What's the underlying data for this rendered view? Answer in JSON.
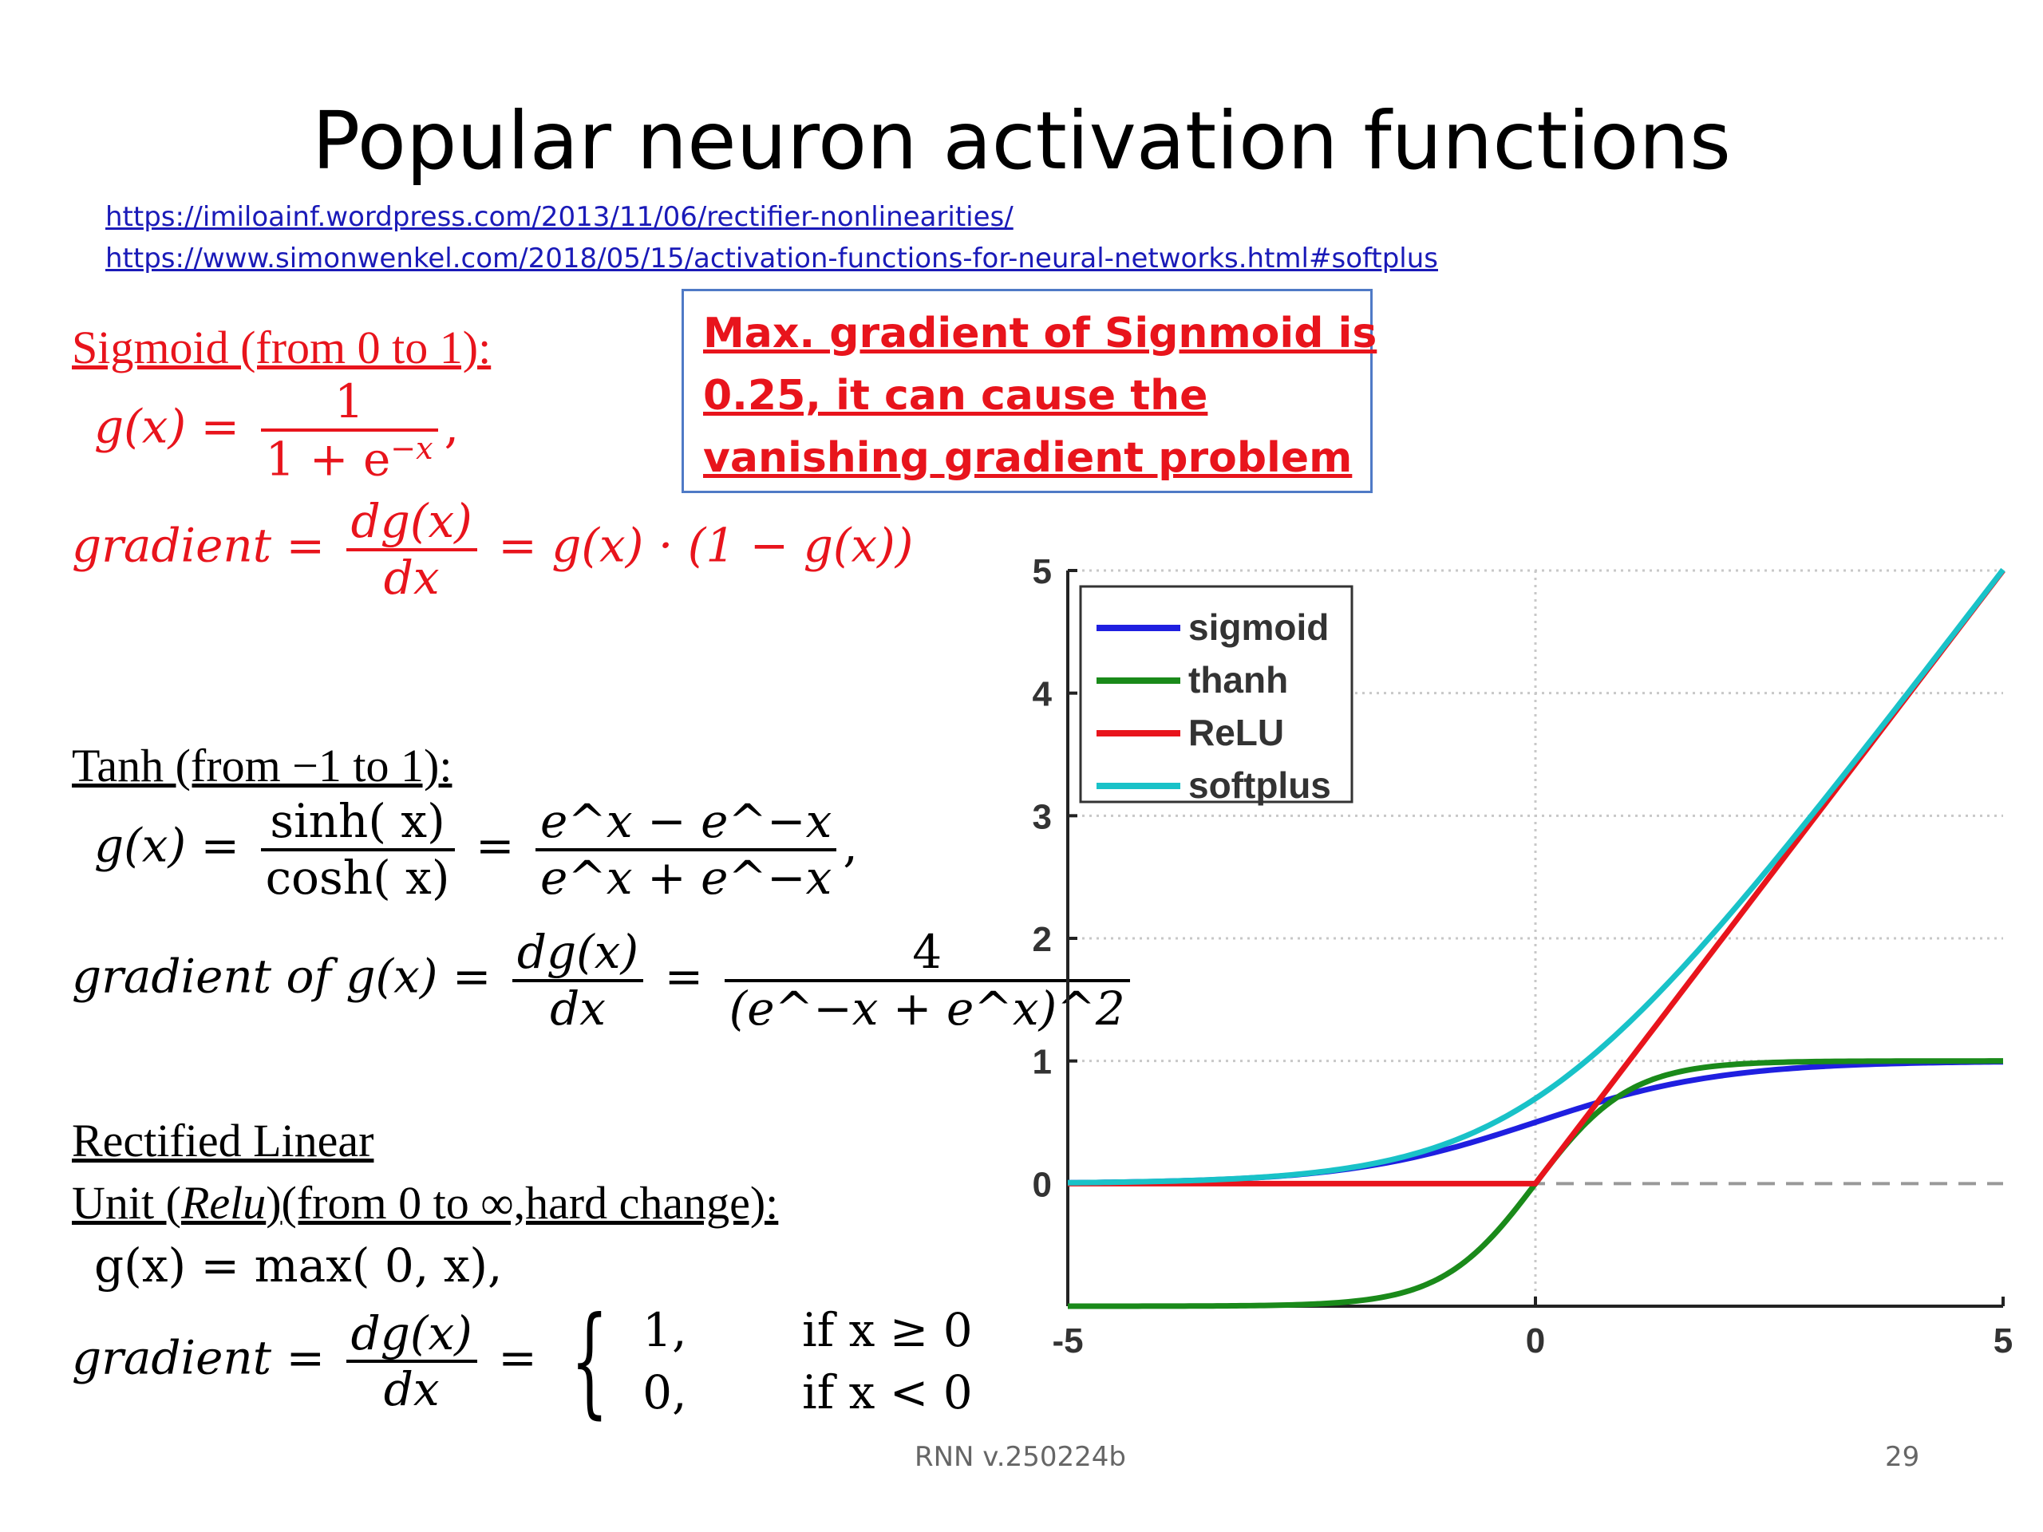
{
  "slide": {
    "title": "Popular neuron activation functions",
    "links": [
      "https://imiloainf.wordpress.com/2013/11/06/rectifier-nonlinearities/",
      "https://www.simonwenkel.com/2018/05/15/activation-functions-for-neural-networks.html#softplus"
    ],
    "callout": {
      "lines": [
        "Max. gradient of Signmoid is",
        "0.25, it can cause the",
        "vanishing gradient  problem"
      ]
    },
    "sigmoid": {
      "heading": "Sigmoid (from 0 to 1):",
      "lhs": "g(x) =",
      "num": "1",
      "den": "1 + e",
      "den_exp": "−x",
      "comma": ",",
      "grad_lhs": "gradient =",
      "grad_num": "dg(x)",
      "grad_den": "dx",
      "grad_rhs": "= g(x) · (1 − g(x))"
    },
    "tanh": {
      "heading": "Tanh (from −1 to 1):",
      "lhs": "g(x) =",
      "num1": "sinh( x)",
      "den1": "cosh( x)",
      "eq": "=",
      "num2": "e^x − e^−x",
      "den2": "e^x + e^−x",
      "comma": ",",
      "grad_lhs": "gradient of  g(x) =",
      "grad_num": "dg(x)",
      "grad_den": "dx",
      "grad_eq": "=",
      "grad_num2": "4",
      "grad_den2": "(e^−x + e^x)^2"
    },
    "relu": {
      "heading1": "Rectified Linear",
      "heading2_a": "Unit (",
      "heading2_b": "Relu",
      "heading2_c": ")(from 0 to ∞,hard change):",
      "lhs": "g(x) = max( 0, x),",
      "grad_lhs": "gradient =",
      "grad_num": "dg(x)",
      "grad_den": "dx",
      "grad_eq": "=",
      "case1_val": "1,",
      "case1_cond": "if x ≥ 0",
      "case2_val": "0,",
      "case2_cond": "if x < 0"
    },
    "footer": {
      "center": "RNN v.250224b",
      "page": "29"
    }
  },
  "chart_data": {
    "type": "line",
    "xlim": [
      -5,
      5
    ],
    "ylim": [
      -1,
      5
    ],
    "xticks": [
      "-5",
      "0",
      "5"
    ],
    "yticks": [
      "0",
      "1",
      "2",
      "3",
      "4",
      "5"
    ],
    "grid": true,
    "legend_position": "top-left",
    "x": [
      -5,
      -4,
      -3,
      -2,
      -1,
      0,
      1,
      2,
      3,
      4,
      5
    ],
    "series": [
      {
        "name": "sigmoid",
        "color": "#1f1fe0",
        "values": [
          0.007,
          0.018,
          0.047,
          0.119,
          0.269,
          0.5,
          0.731,
          0.881,
          0.953,
          0.982,
          0.993
        ]
      },
      {
        "name": "thanh",
        "color": "#1a8a1a",
        "values": [
          -1.0,
          -0.999,
          -0.995,
          -0.964,
          -0.762,
          0.0,
          0.762,
          0.964,
          0.995,
          0.999,
          1.0
        ]
      },
      {
        "name": "ReLU",
        "color": "#e8141c",
        "values": [
          0,
          0,
          0,
          0,
          0,
          0,
          1,
          2,
          3,
          4,
          5
        ]
      },
      {
        "name": "softplus",
        "color": "#19c2c8",
        "values": [
          0.007,
          0.018,
          0.049,
          0.127,
          0.313,
          0.693,
          1.313,
          2.127,
          3.049,
          4.018,
          5.007
        ]
      }
    ]
  }
}
